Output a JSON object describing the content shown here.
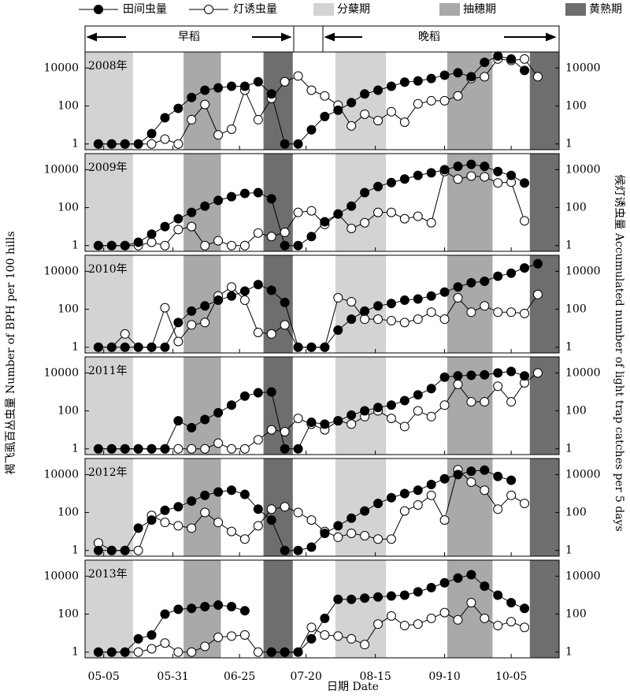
{
  "figure": {
    "xlabel": "日期 Date",
    "ylabel": "褐飞虱百丛虫量 Number of BPH per 100 hills",
    "y2label": "候灯诱虫量 Accumulated number of light trap catches per 5 days",
    "seasons": [
      {
        "label": "早稻"
      },
      {
        "label": "晚稻"
      }
    ],
    "bands": [
      {
        "name": "分蘖期",
        "color": "#d3d3d3",
        "ranges": [
          [
            "04-28",
            "05-16"
          ],
          [
            "07-31",
            "08-19"
          ]
        ]
      },
      {
        "name": "抽穗期",
        "color": "#a9a9a9",
        "ranges": [
          [
            "06-04",
            "06-18"
          ],
          [
            "09-11",
            "09-28"
          ]
        ]
      },
      {
        "name": "黄熟期",
        "color": "#6e6e6e",
        "ranges": [
          [
            "07-04",
            "07-15"
          ],
          [
            "10-12",
            "10-23"
          ]
        ]
      }
    ]
  },
  "chart_data": [
    {
      "type": "line",
      "title": "2008年",
      "log_scale": true,
      "x": [
        "05-03",
        "05-08",
        "05-13",
        "05-18",
        "05-23",
        "05-28",
        "06-02",
        "06-07",
        "06-12",
        "06-17",
        "06-22",
        "06-27",
        "07-02",
        "07-07",
        "07-12",
        "07-17",
        "07-22",
        "07-27",
        "08-01",
        "08-06",
        "08-11",
        "08-16",
        "08-21",
        "08-26",
        "08-31",
        "09-05",
        "09-10",
        "09-15",
        "09-20",
        "09-25",
        "09-30",
        "10-05",
        "10-10",
        "10-15"
      ],
      "xlim": [
        "04-28",
        "10-23"
      ],
      "xticks": [
        "05-05",
        "05-31",
        "06-25",
        "07-20",
        "08-15",
        "09-10",
        "10-05"
      ],
      "ylim": [
        0.5,
        70000
      ],
      "yticks": [
        1,
        100,
        10000
      ],
      "y2lim": [
        0.5,
        70000
      ],
      "y2ticks": [
        1,
        100,
        10000
      ],
      "series": [
        {
          "name": "田间虫量",
          "color": "#000000",
          "values": [
            1,
            1,
            1,
            1,
            3.5,
            24,
            75,
            280,
            680,
            900,
            1100,
            1100,
            1900,
            430,
            1,
            1,
            5.6,
            28,
            60,
            150,
            430,
            680,
            1100,
            1800,
            2100,
            2800,
            4200,
            5600,
            3500,
            20000,
            43000,
            30000,
            7500,
            null
          ]
        },
        {
          "name": "灯诱虫量",
          "color": "#ffffff",
          "axis": "y2",
          "values": [
            1,
            1,
            1,
            1,
            1,
            1.8,
            1,
            19,
            120,
            3,
            6,
            680,
            19,
            250,
            1900,
            3800,
            680,
            340,
            110,
            9,
            37,
            17,
            50,
            14,
            130,
            190,
            190,
            340,
            2800,
            3500,
            30000,
            25000,
            30000,
            3500
          ]
        }
      ]
    },
    {
      "type": "line",
      "title": "2009年",
      "log_scale": true,
      "x": [
        "05-03",
        "05-08",
        "05-13",
        "05-18",
        "05-23",
        "05-28",
        "06-02",
        "06-07",
        "06-12",
        "06-17",
        "06-22",
        "06-27",
        "07-02",
        "07-07",
        "07-12",
        "07-17",
        "07-22",
        "07-27",
        "08-01",
        "08-06",
        "08-11",
        "08-16",
        "08-21",
        "08-26",
        "08-31",
        "09-05",
        "09-10",
        "09-15",
        "09-20",
        "09-25",
        "09-30",
        "10-05",
        "10-10",
        "10-15"
      ],
      "xlim": [
        "04-28",
        "10-23"
      ],
      "xticks": [
        "05-05",
        "05-31",
        "06-25",
        "07-20",
        "08-15",
        "09-10",
        "10-05"
      ],
      "ylim": [
        0.5,
        70000
      ],
      "yticks": [
        1,
        100,
        10000
      ],
      "y2lim": [
        0.5,
        70000
      ],
      "y2ticks": [
        1,
        100,
        10000
      ],
      "series": [
        {
          "name": "田间虫量",
          "color": "#000000",
          "values": [
            1,
            1,
            1,
            1.5,
            4,
            10,
            26,
            56,
            120,
            240,
            380,
            560,
            620,
            290,
            1,
            1,
            3,
            18,
            46,
            120,
            620,
            1300,
            2100,
            3200,
            5000,
            6800,
            10000,
            15000,
            19000,
            15000,
            8000,
            5000,
            2000,
            null
          ]
        },
        {
          "name": "灯诱虫量",
          "color": "#ffffff",
          "axis": "y2",
          "values": [
            1,
            1,
            1,
            1,
            1.5,
            1,
            7,
            10,
            1,
            1.8,
            1,
            1,
            4.6,
            3,
            5,
            56,
            68,
            13,
            46,
            8,
            16,
            56,
            56,
            26,
            35,
            16,
            8000,
            3200,
            4600,
            4200,
            2000,
            2200,
            20,
            null
          ]
        }
      ]
    },
    {
      "type": "line",
      "title": "2010年",
      "log_scale": true,
      "x": [
        "05-03",
        "05-08",
        "05-13",
        "05-18",
        "05-23",
        "05-28",
        "06-02",
        "06-07",
        "06-12",
        "06-17",
        "06-22",
        "06-27",
        "07-02",
        "07-07",
        "07-12",
        "07-17",
        "07-22",
        "07-27",
        "08-01",
        "08-06",
        "08-11",
        "08-16",
        "08-21",
        "08-26",
        "08-31",
        "09-05",
        "09-10",
        "09-15",
        "09-20",
        "09-25",
        "09-30",
        "10-05",
        "10-10",
        "10-15"
      ],
      "xlim": [
        "04-28",
        "10-23"
      ],
      "xticks": [
        "05-05",
        "05-31",
        "06-25",
        "07-20",
        "08-15",
        "09-10",
        "10-05"
      ],
      "ylim": [
        0.5,
        70000
      ],
      "yticks": [
        1,
        100,
        10000
      ],
      "y2lim": [
        0.5,
        70000
      ],
      "y2ticks": [
        1,
        100,
        10000
      ],
      "series": [
        {
          "name": "田间虫量",
          "color": "#000000",
          "values": [
            1,
            1,
            1,
            1,
            1,
            1,
            20,
            80,
            150,
            300,
            500,
            900,
            2000,
            1000,
            230,
            1,
            1,
            1,
            8,
            30,
            80,
            150,
            200,
            300,
            350,
            500,
            800,
            1500,
            2500,
            3000,
            5500,
            8000,
            15000,
            25000
          ]
        },
        {
          "name": "灯诱虫量",
          "color": "#ffffff",
          "axis": "y2",
          "values": [
            1,
            1,
            5,
            1,
            1,
            120,
            2,
            15,
            20,
            500,
            1500,
            300,
            6,
            5,
            15,
            1,
            1,
            1,
            400,
            250,
            30,
            30,
            25,
            20,
            30,
            70,
            30,
            400,
            70,
            150,
            70,
            70,
            60,
            600
          ]
        }
      ]
    },
    {
      "type": "line",
      "title": "2011年",
      "log_scale": true,
      "x": [
        "05-03",
        "05-08",
        "05-13",
        "05-18",
        "05-23",
        "05-28",
        "06-02",
        "06-07",
        "06-12",
        "06-17",
        "06-22",
        "06-27",
        "07-02",
        "07-07",
        "07-12",
        "07-17",
        "07-22",
        "07-27",
        "08-01",
        "08-06",
        "08-11",
        "08-16",
        "08-21",
        "08-26",
        "08-31",
        "09-05",
        "09-10",
        "09-15",
        "09-20",
        "09-25",
        "09-30",
        "10-05",
        "10-10",
        "10-15"
      ],
      "xlim": [
        "04-28",
        "10-23"
      ],
      "xticks": [
        "05-05",
        "05-31",
        "06-25",
        "07-20",
        "08-15",
        "09-10",
        "10-05"
      ],
      "ylim": [
        0.5,
        70000
      ],
      "yticks": [
        1,
        100,
        10000
      ],
      "y2lim": [
        0.5,
        70000
      ],
      "y2ticks": [
        1,
        100,
        10000
      ],
      "series": [
        {
          "name": "田间虫量",
          "color": "#000000",
          "values": [
            1,
            1,
            1,
            1,
            1,
            1,
            30,
            13,
            35,
            80,
            200,
            600,
            900,
            1000,
            1,
            1,
            25,
            20,
            30,
            60,
            100,
            150,
            200,
            350,
            700,
            1500,
            6000,
            7000,
            7500,
            8000,
            10000,
            12000,
            7000,
            null
          ]
        },
        {
          "name": "灯诱虫量",
          "color": "#ffffff",
          "axis": "y2",
          "values": [
            1,
            1,
            1,
            1,
            1,
            1,
            1,
            1,
            1,
            2,
            1,
            1,
            3,
            10,
            8,
            40,
            20,
            10,
            30,
            20,
            50,
            100,
            40,
            15,
            100,
            50,
            200,
            2500,
            300,
            300,
            2000,
            300,
            3000,
            10000
          ]
        }
      ]
    },
    {
      "type": "line",
      "title": "2012年",
      "log_scale": true,
      "x": [
        "05-03",
        "05-08",
        "05-13",
        "05-18",
        "05-23",
        "05-28",
        "06-02",
        "06-07",
        "06-12",
        "06-17",
        "06-22",
        "06-27",
        "07-02",
        "07-07",
        "07-12",
        "07-17",
        "07-22",
        "07-27",
        "08-01",
        "08-06",
        "08-11",
        "08-16",
        "08-21",
        "08-26",
        "08-31",
        "09-05",
        "09-10",
        "09-15",
        "09-20",
        "09-25",
        "09-30",
        "10-05",
        "10-10",
        "10-15"
      ],
      "xlim": [
        "04-28",
        "10-23"
      ],
      "xticks": [
        "05-05",
        "05-31",
        "06-25",
        "07-20",
        "08-15",
        "09-10",
        "10-05"
      ],
      "ylim": [
        0.5,
        70000
      ],
      "yticks": [
        1,
        100,
        10000
      ],
      "y2lim": [
        0.5,
        70000
      ],
      "y2ticks": [
        1,
        100,
        10000
      ],
      "series": [
        {
          "name": "田间虫量",
          "color": "#000000",
          "values": [
            1,
            1,
            1,
            15,
            40,
            130,
            200,
            400,
            800,
            1200,
            1500,
            900,
            150,
            40,
            1,
            1,
            1.5,
            8,
            20,
            50,
            120,
            300,
            600,
            1000,
            1500,
            3000,
            6000,
            10000,
            15000,
            17000,
            8000,
            5000,
            null,
            null
          ]
        },
        {
          "name": "灯诱虫量",
          "color": "#ffffff",
          "axis": "y2",
          "values": [
            2.5,
            1,
            1,
            1,
            70,
            30,
            20,
            15,
            100,
            30,
            10,
            4,
            20,
            150,
            200,
            100,
            40,
            10,
            5,
            8,
            6,
            4,
            4,
            120,
            250,
            800,
            40,
            18000,
            4000,
            1500,
            150,
            800,
            300,
            null
          ]
        }
      ]
    },
    {
      "type": "line",
      "title": "2013年",
      "log_scale": true,
      "x": [
        "05-03",
        "05-08",
        "05-13",
        "05-18",
        "05-23",
        "05-28",
        "06-02",
        "06-07",
        "06-12",
        "06-17",
        "06-22",
        "06-27",
        "07-02",
        "07-07",
        "07-12",
        "07-17",
        "07-22",
        "07-27",
        "08-01",
        "08-06",
        "08-11",
        "08-16",
        "08-21",
        "08-26",
        "08-31",
        "09-05",
        "09-10",
        "09-15",
        "09-20",
        "09-25",
        "09-30",
        "10-05",
        "10-10",
        "10-15"
      ],
      "xlim": [
        "04-28",
        "10-23"
      ],
      "xticks": [
        "05-05",
        "05-31",
        "06-25",
        "07-20",
        "08-15",
        "09-10",
        "10-05"
      ],
      "ylim": [
        0.5,
        70000
      ],
      "yticks": [
        1,
        100,
        10000
      ],
      "y2lim": [
        0.5,
        70000
      ],
      "y2ticks": [
        1,
        100,
        10000
      ],
      "series": [
        {
          "name": "田间虫量",
          "color": "#000000",
          "values": [
            1,
            1,
            1,
            5,
            8,
            100,
            180,
            200,
            250,
            300,
            250,
            150,
            null,
            1,
            1,
            1,
            5,
            60,
            600,
            600,
            700,
            800,
            900,
            1000,
            1500,
            2500,
            4500,
            8000,
            12000,
            3000,
            1000,
            400,
            200,
            null
          ]
        },
        {
          "name": "灯诱虫量",
          "color": "#ffffff",
          "axis": "y2",
          "values": [
            1,
            1,
            1,
            1,
            1.5,
            3,
            1,
            1,
            2,
            6,
            7,
            8,
            1,
            1,
            1,
            1,
            20,
            8,
            7,
            5,
            2.5,
            30,
            80,
            25,
            30,
            60,
            120,
            50,
            400,
            60,
            25,
            40,
            20,
            null
          ]
        }
      ]
    }
  ]
}
